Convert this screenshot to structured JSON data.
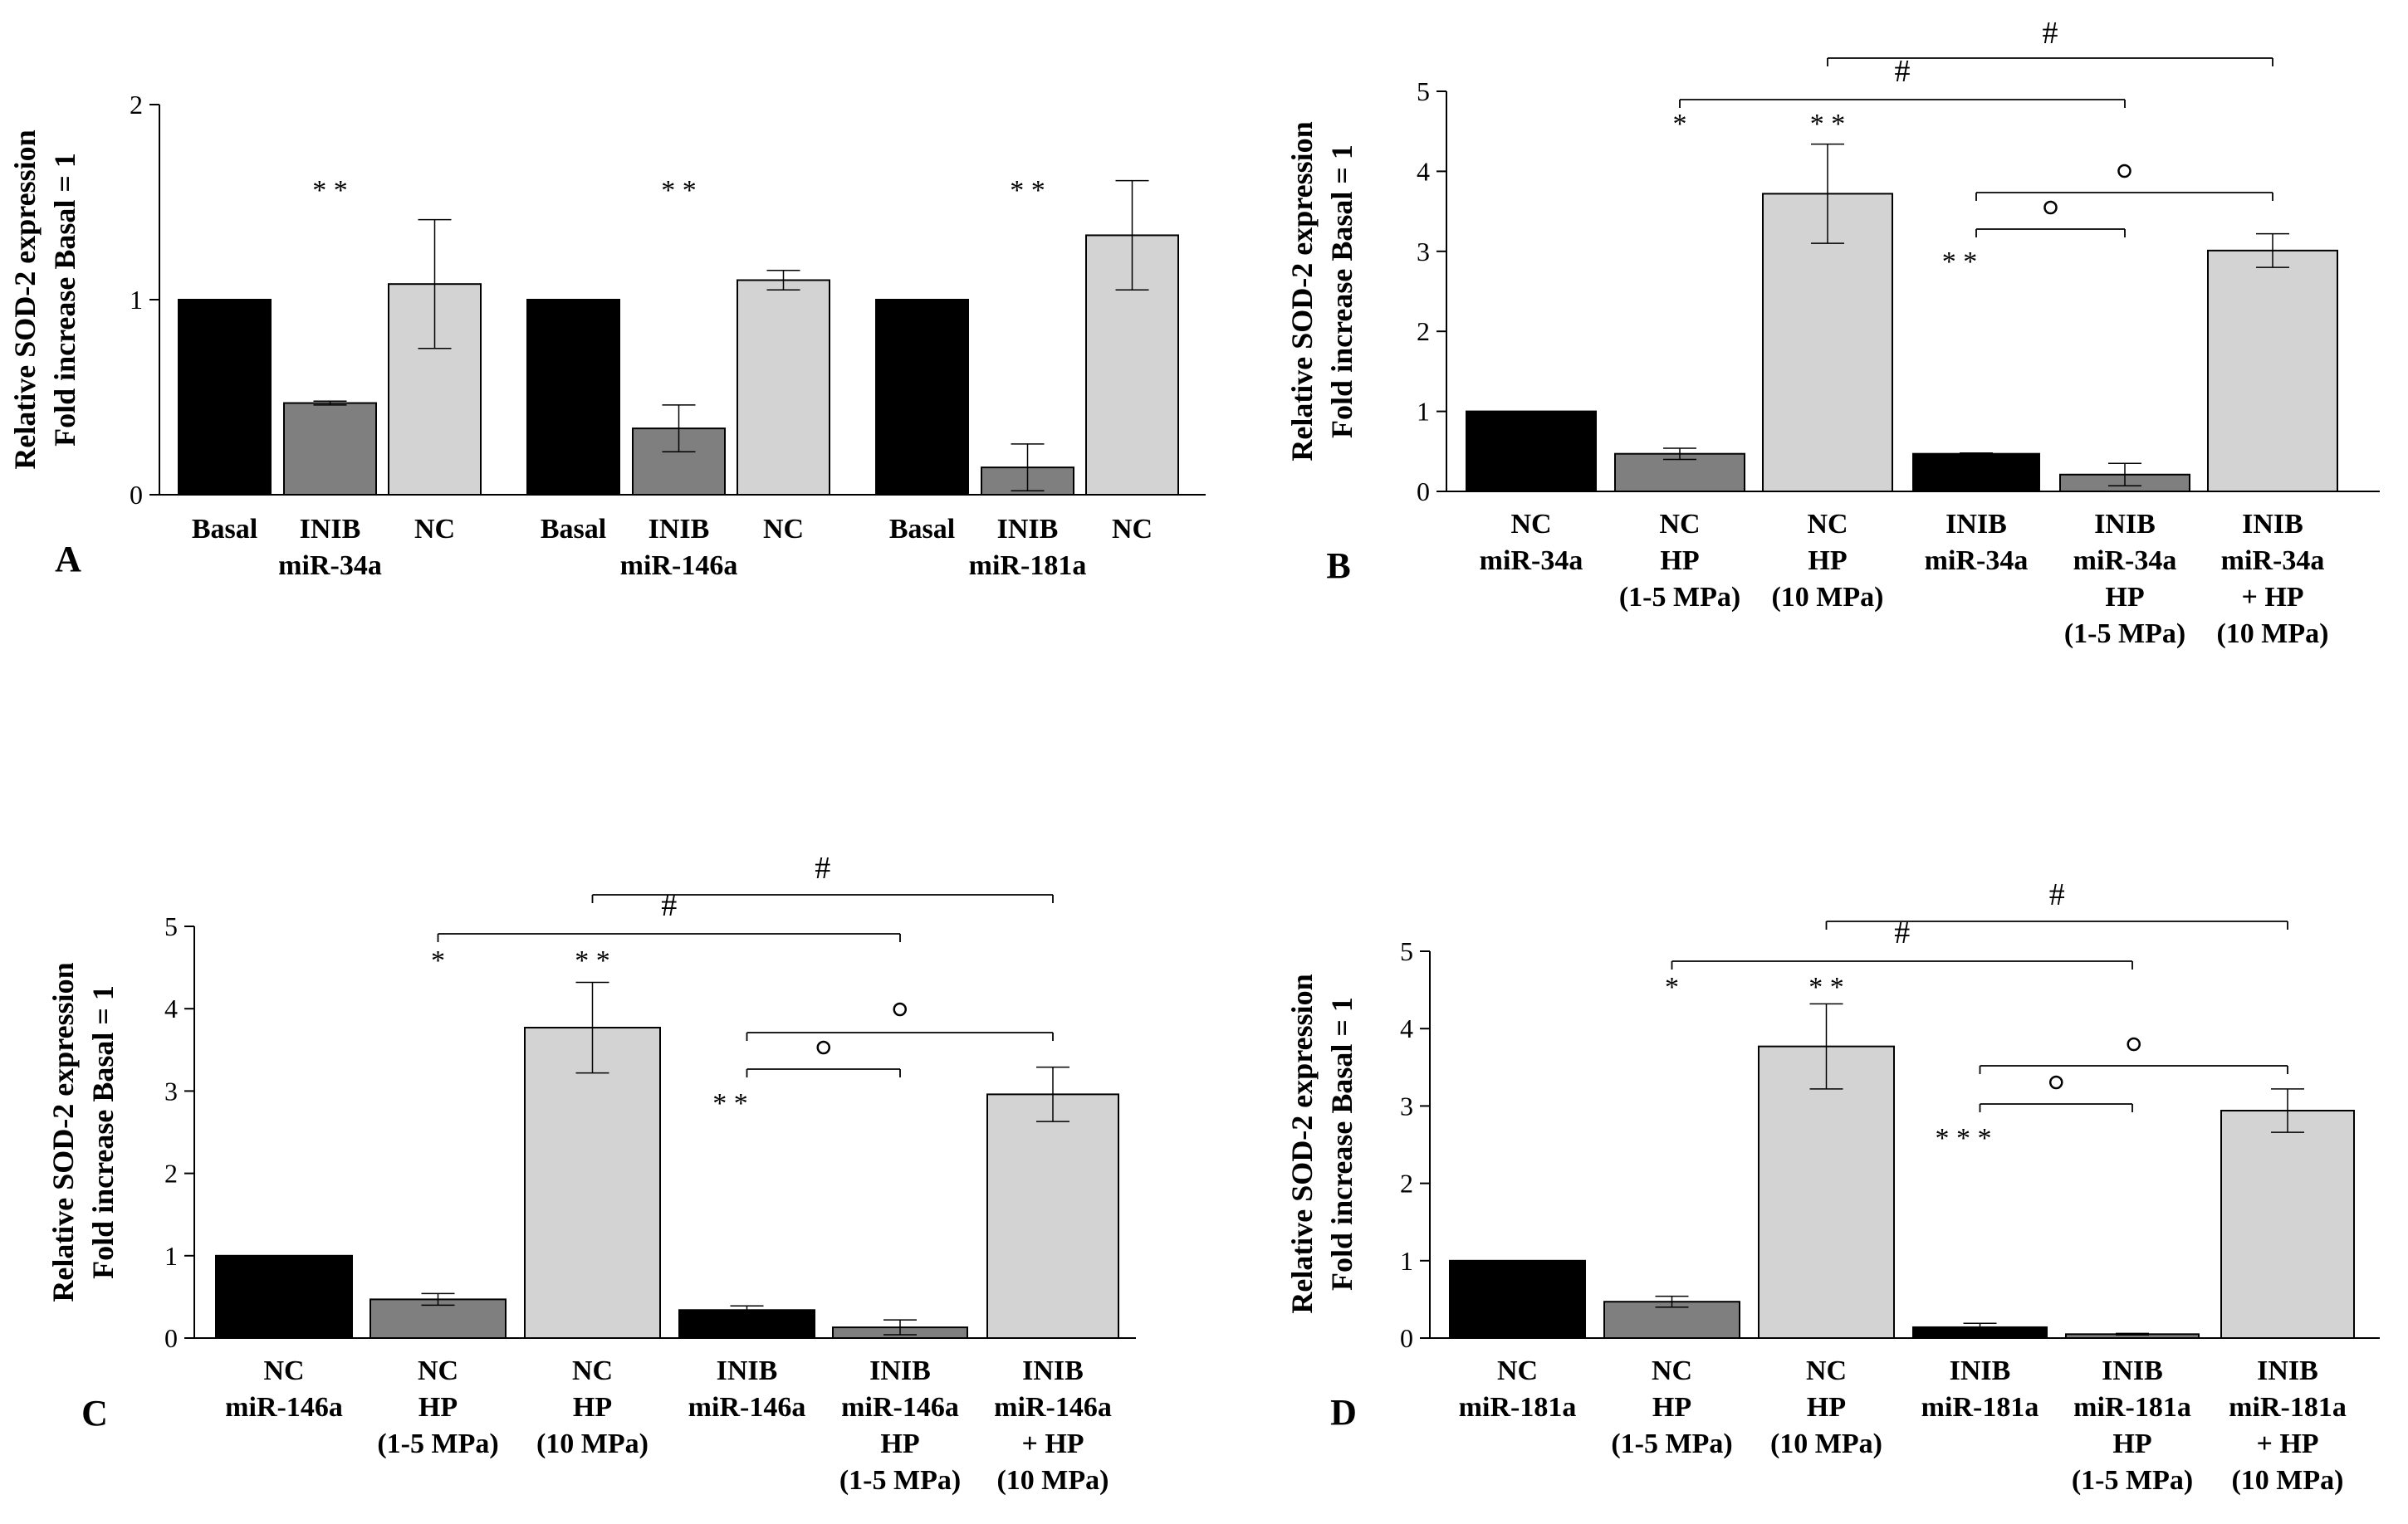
{
  "colors": {
    "black": "#000000",
    "dark_gray": "#7f7f7f",
    "light_gray": "#d3d3d3"
  },
  "chart_data": [
    {
      "panel": "A",
      "type": "bar",
      "ylabel": [
        "Relative SOD-2 expression",
        "Fold increase Basal = 1"
      ],
      "ylim": [
        0,
        2
      ],
      "yticks": [
        0,
        1,
        2
      ],
      "groups": [
        {
          "name": "miR-34a",
          "bars": [
            {
              "label": [
                "Basal"
              ],
              "value": 1.0,
              "error": 0,
              "color": "#000000"
            },
            {
              "label": [
                "INIB",
                "miR-34a"
              ],
              "value": 0.47,
              "error": 0.01,
              "color": "#7f7f7f",
              "sig": "* *"
            },
            {
              "label": [
                "NC"
              ],
              "value": 1.08,
              "error": 0.33,
              "color": "#d3d3d3"
            }
          ]
        },
        {
          "name": "miR-146a",
          "bars": [
            {
              "label": [
                "Basal"
              ],
              "value": 1.0,
              "error": 0,
              "color": "#000000"
            },
            {
              "label": [
                "INIB",
                "miR-146a"
              ],
              "value": 0.34,
              "error": 0.12,
              "color": "#7f7f7f",
              "sig": "* *"
            },
            {
              "label": [
                "NC"
              ],
              "value": 1.1,
              "error": 0.05,
              "color": "#d3d3d3"
            }
          ]
        },
        {
          "name": "miR-181a",
          "bars": [
            {
              "label": [
                "Basal"
              ],
              "value": 1.0,
              "error": 0,
              "color": "#000000"
            },
            {
              "label": [
                "INIB",
                "miR-181a"
              ],
              "value": 0.14,
              "error": 0.12,
              "color": "#7f7f7f",
              "sig": "* *"
            },
            {
              "label": [
                "NC"
              ],
              "value": 1.33,
              "error": 0.28,
              "color": "#d3d3d3"
            }
          ]
        }
      ]
    },
    {
      "panel": "B",
      "type": "bar",
      "ylabel": [
        "Relative SOD-2 expression",
        "Fold increase Basal = 1"
      ],
      "ylim": [
        0,
        5
      ],
      "yticks": [
        0,
        1,
        2,
        3,
        4,
        5
      ],
      "bars": [
        {
          "label": [
            "NC",
            "miR-34a"
          ],
          "value": 1.0,
          "error": 0,
          "color": "#000000"
        },
        {
          "label": [
            "NC",
            "HP",
            "(1-5 MPa)"
          ],
          "value": 0.47,
          "error": 0.07,
          "color": "#7f7f7f",
          "sig": "*"
        },
        {
          "label": [
            "NC",
            "HP",
            "(10 MPa)"
          ],
          "value": 3.72,
          "error": 0.62,
          "color": "#d3d3d3",
          "sig": "* *"
        },
        {
          "label": [
            "INIB",
            "miR-34a"
          ],
          "value": 0.47,
          "error": 0.01,
          "color": "#000000",
          "sig": "* *"
        },
        {
          "label": [
            "INIB",
            "miR-34a",
            "HP",
            "(1-5 MPa)"
          ],
          "value": 0.21,
          "error": 0.14,
          "color": "#7f7f7f"
        },
        {
          "label": [
            "INIB",
            "miR-34a",
            "+ HP",
            "(10 MPa)"
          ],
          "value": 3.01,
          "error": 0.21,
          "color": "#d3d3d3"
        }
      ],
      "brackets": [
        {
          "from": 1,
          "to": 4,
          "symbol": "#"
        },
        {
          "from": 2,
          "to": 5,
          "symbol": "#"
        },
        {
          "from": 3,
          "to": 4,
          "symbol": "°"
        },
        {
          "from": 3,
          "to": 5,
          "symbol": "°"
        }
      ]
    },
    {
      "panel": "C",
      "type": "bar",
      "ylabel": [
        "Relative SOD-2 expression",
        "Fold increase Basal = 1"
      ],
      "ylim": [
        0,
        5
      ],
      "yticks": [
        0,
        1,
        2,
        3,
        4,
        5
      ],
      "bars": [
        {
          "label": [
            "NC",
            "miR-146a"
          ],
          "value": 1.0,
          "error": 0,
          "color": "#000000"
        },
        {
          "label": [
            "NC",
            "HP",
            "(1-5 MPa)"
          ],
          "value": 0.47,
          "error": 0.07,
          "color": "#7f7f7f",
          "sig": "*"
        },
        {
          "label": [
            "NC",
            "HP",
            "(10 MPa)"
          ],
          "value": 3.77,
          "error": 0.55,
          "color": "#d3d3d3",
          "sig": "* *"
        },
        {
          "label": [
            "INIB",
            "miR-146a"
          ],
          "value": 0.34,
          "error": 0.05,
          "color": "#000000",
          "sig": "* *"
        },
        {
          "label": [
            "INIB",
            "miR-146a",
            "HP",
            "(1-5 MPa)"
          ],
          "value": 0.13,
          "error": 0.09,
          "color": "#7f7f7f"
        },
        {
          "label": [
            "INIB",
            "miR-146a",
            "+ HP",
            "(10 MPa)"
          ],
          "value": 2.96,
          "error": 0.33,
          "color": "#d3d3d3"
        }
      ],
      "brackets": [
        {
          "from": 1,
          "to": 4,
          "symbol": "#"
        },
        {
          "from": 2,
          "to": 5,
          "symbol": "#"
        },
        {
          "from": 3,
          "to": 4,
          "symbol": "°"
        },
        {
          "from": 3,
          "to": 5,
          "symbol": "°"
        }
      ]
    },
    {
      "panel": "D",
      "type": "bar",
      "ylabel": [
        "Relative SOD-2 expression",
        "Fold increase Basal = 1"
      ],
      "ylim": [
        0,
        5
      ],
      "yticks": [
        0,
        1,
        2,
        3,
        4,
        5
      ],
      "bars": [
        {
          "label": [
            "NC",
            "miR-181a"
          ],
          "value": 1.0,
          "error": 0,
          "color": "#000000"
        },
        {
          "label": [
            "NC",
            "HP",
            "(1-5 MPa)"
          ],
          "value": 0.47,
          "error": 0.07,
          "color": "#7f7f7f",
          "sig": "*"
        },
        {
          "label": [
            "NC",
            "HP",
            "(10 MPa)"
          ],
          "value": 3.77,
          "error": 0.55,
          "color": "#d3d3d3",
          "sig": "* *"
        },
        {
          "label": [
            "INIB",
            "miR-181a"
          ],
          "value": 0.14,
          "error": 0.05,
          "color": "#000000",
          "sig": "* * *"
        },
        {
          "label": [
            "INIB",
            "miR-181a",
            "HP",
            "(1-5 MPa)"
          ],
          "value": 0.05,
          "error": 0.01,
          "color": "#7f7f7f"
        },
        {
          "label": [
            "INIB",
            "miR-181a",
            "+ HP",
            "(10 MPa)"
          ],
          "value": 2.94,
          "error": 0.28,
          "color": "#d3d3d3"
        }
      ],
      "brackets": [
        {
          "from": 1,
          "to": 4,
          "symbol": "#"
        },
        {
          "from": 2,
          "to": 5,
          "symbol": "#"
        },
        {
          "from": 3,
          "to": 4,
          "symbol": "°"
        },
        {
          "from": 3,
          "to": 5,
          "symbol": "°"
        }
      ]
    }
  ]
}
